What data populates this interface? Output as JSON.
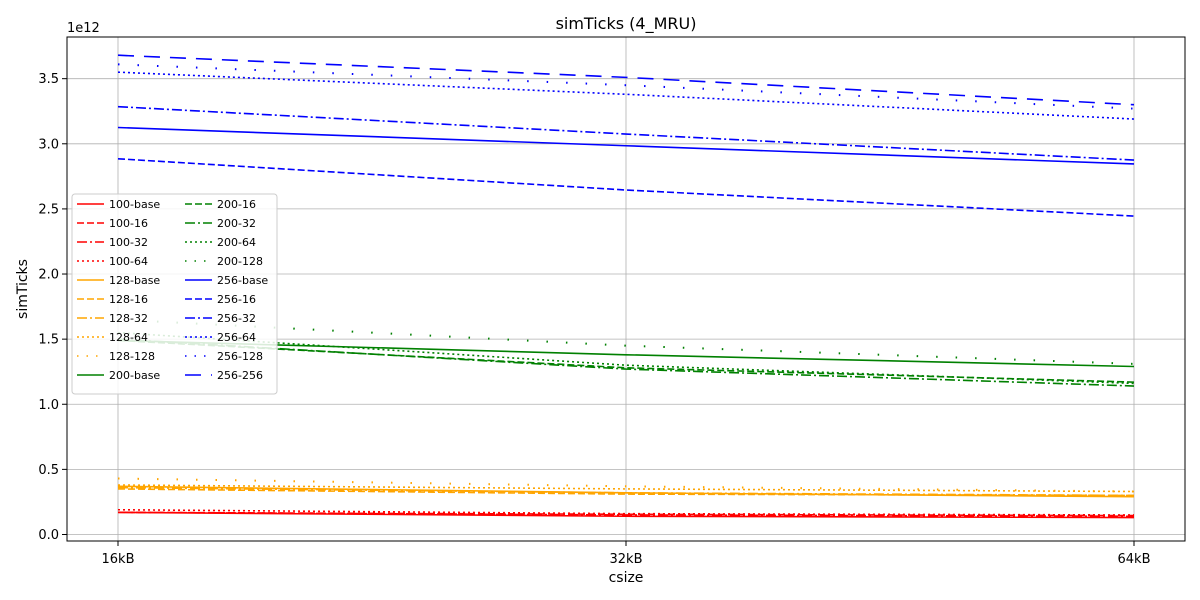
{
  "chart_data": {
    "type": "line",
    "title": "simTicks (4_MRU)",
    "xlabel": "csize",
    "ylabel": "simTicks",
    "y_offset_label": "1e12",
    "x": [
      "16kB",
      "32kB",
      "64kB"
    ],
    "ylim": [
      -0.05,
      3.82
    ],
    "yticks": [
      "0.0",
      "0.5",
      "1.0",
      "1.5",
      "2.0",
      "2.5",
      "3.0",
      "3.5"
    ],
    "ytick_values": [
      0.0,
      0.5,
      1.0,
      1.5,
      2.0,
      2.5,
      3.0,
      3.5
    ],
    "grid": true,
    "legend_position": "center-left",
    "series": [
      {
        "name": "100-base",
        "color": "#ff0000",
        "dash": "solid",
        "values": [
          0.17,
          0.14,
          0.13
        ]
      },
      {
        "name": "100-16",
        "color": "#ff0000",
        "dash": "dashed",
        "values": [
          0.17,
          0.155,
          0.145
        ]
      },
      {
        "name": "100-32",
        "color": "#ff0000",
        "dash": "dashdot",
        "values": [
          0.17,
          0.15,
          0.14
        ]
      },
      {
        "name": "100-64",
        "color": "#ff0000",
        "dash": "dotted",
        "values": [
          0.19,
          0.16,
          0.15
        ]
      },
      {
        "name": "128-base",
        "color": "#ffa500",
        "dash": "solid",
        "values": [
          0.37,
          0.32,
          0.29
        ]
      },
      {
        "name": "128-16",
        "color": "#ffa500",
        "dash": "dashed",
        "values": [
          0.35,
          0.31,
          0.3
        ]
      },
      {
        "name": "128-32",
        "color": "#ffa500",
        "dash": "dashdot",
        "values": [
          0.36,
          0.32,
          0.3
        ]
      },
      {
        "name": "128-64",
        "color": "#ffa500",
        "dash": "dotted",
        "values": [
          0.38,
          0.35,
          0.33
        ]
      },
      {
        "name": "128-128",
        "color": "#ffa500",
        "dash": "sparse",
        "values": [
          0.43,
          0.37,
          0.33
        ]
      },
      {
        "name": "200-base",
        "color": "#008000",
        "dash": "solid",
        "values": [
          1.49,
          1.38,
          1.29
        ]
      },
      {
        "name": "200-16",
        "color": "#008000",
        "dash": "dashed",
        "values": [
          1.49,
          1.28,
          1.17
        ]
      },
      {
        "name": "200-32",
        "color": "#008000",
        "dash": "dashdot",
        "values": [
          1.5,
          1.27,
          1.14
        ]
      },
      {
        "name": "200-64",
        "color": "#008000",
        "dash": "dotted",
        "values": [
          1.55,
          1.3,
          1.16
        ]
      },
      {
        "name": "200-128",
        "color": "#008000",
        "dash": "sparse",
        "values": [
          1.65,
          1.45,
          1.31
        ]
      },
      {
        "name": "256-base",
        "color": "#0000ff",
        "dash": "solid",
        "values": [
          3.125,
          2.985,
          2.845
        ]
      },
      {
        "name": "256-16",
        "color": "#0000ff",
        "dash": "dashed",
        "values": [
          2.885,
          2.645,
          2.445
        ]
      },
      {
        "name": "256-32",
        "color": "#0000ff",
        "dash": "dashdot",
        "values": [
          3.285,
          3.075,
          2.875
        ]
      },
      {
        "name": "256-64",
        "color": "#0000ff",
        "dash": "dotted",
        "values": [
          3.55,
          3.38,
          3.19
        ]
      },
      {
        "name": "256-128",
        "color": "#0000ff",
        "dash": "sparse",
        "values": [
          3.61,
          3.45,
          3.27
        ]
      },
      {
        "name": "256-256",
        "color": "#0000ff",
        "dash": "longdash",
        "values": [
          3.68,
          3.51,
          3.3
        ]
      }
    ]
  }
}
